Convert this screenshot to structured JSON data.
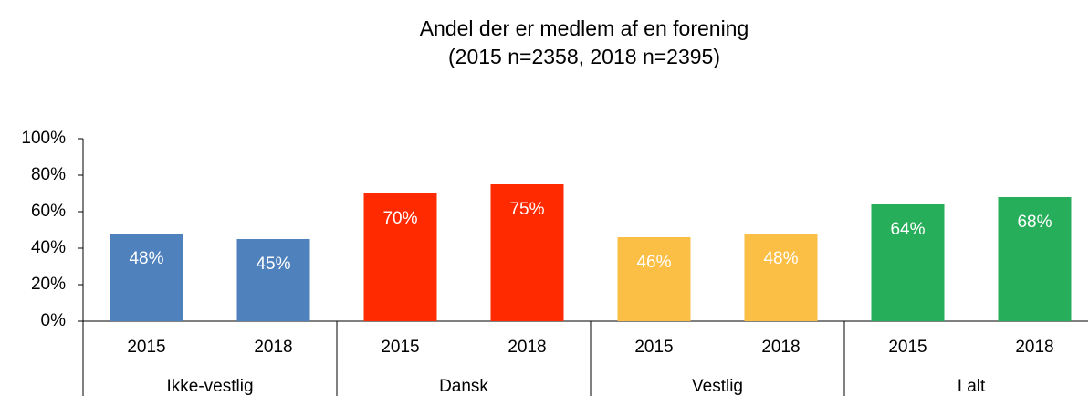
{
  "chart_data": {
    "type": "bar",
    "title": "Andel der er medlem af en forening",
    "subtitle": "(2015 n=2358, 2018 n=2395)",
    "groups": [
      {
        "name": "Ikke-vestlig",
        "color": "#4f81bd",
        "categories": [
          "2015",
          "2018"
        ],
        "values": [
          48,
          45
        ],
        "value_labels": [
          "48%",
          "45%"
        ]
      },
      {
        "name": "Dansk",
        "color": "#ff2a00",
        "categories": [
          "2015",
          "2018"
        ],
        "values": [
          70,
          75
        ],
        "value_labels": [
          "70%",
          "75%"
        ]
      },
      {
        "name": "Vestlig",
        "color": "#fbbf45",
        "categories": [
          "2015",
          "2018"
        ],
        "values": [
          46,
          48
        ],
        "value_labels": [
          "46%",
          "48%"
        ]
      },
      {
        "name": "I alt",
        "color": "#27ae5a",
        "categories": [
          "2015",
          "2018"
        ],
        "values": [
          64,
          68
        ],
        "value_labels": [
          "64%",
          "68%"
        ]
      }
    ],
    "ylim": [
      0,
      100
    ],
    "yticks": [
      {
        "value": 0,
        "label": "0%"
      },
      {
        "value": 20,
        "label": "20%"
      },
      {
        "value": 40,
        "label": "40%"
      },
      {
        "value": 60,
        "label": "60%"
      },
      {
        "value": 80,
        "label": "80%"
      },
      {
        "value": 100,
        "label": "100%"
      }
    ],
    "grid": false
  }
}
